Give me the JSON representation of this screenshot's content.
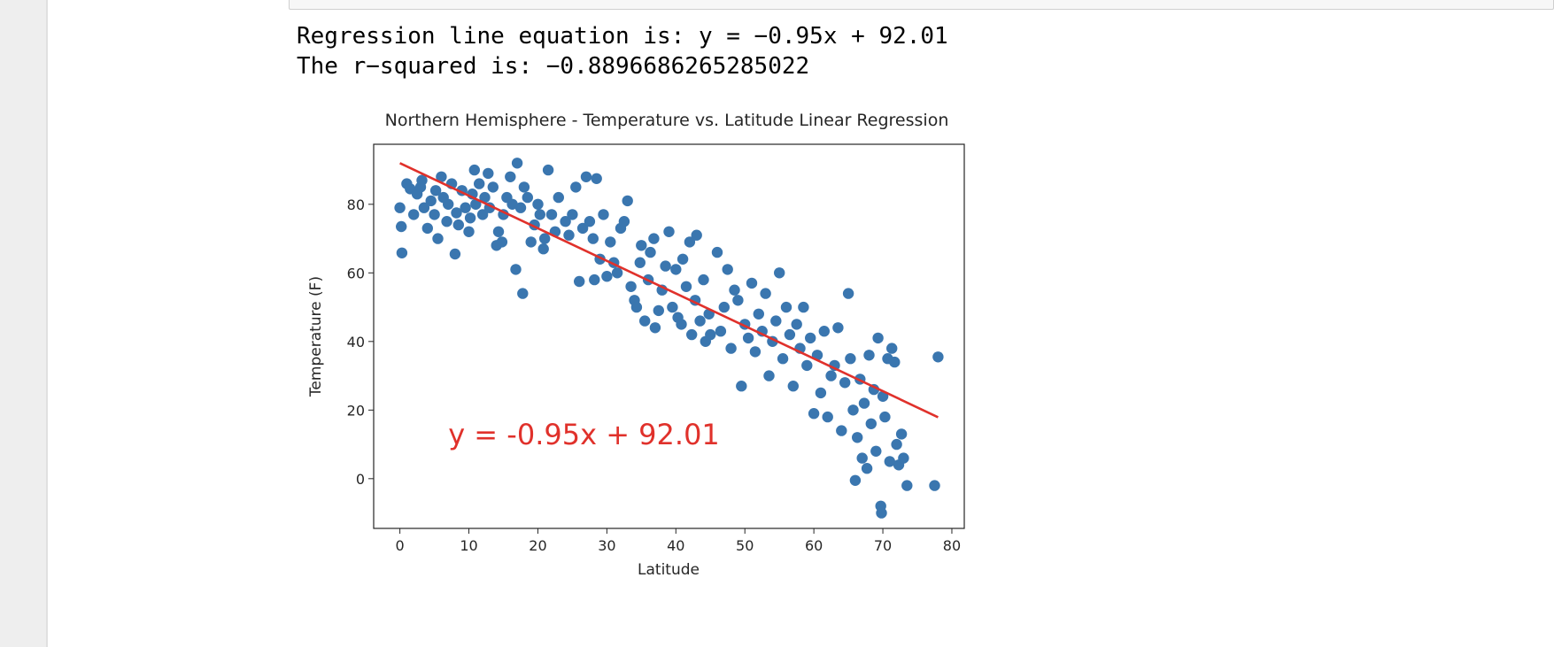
{
  "output": {
    "line1": "Regression line equation is: y = −0.95x + 92.01",
    "line2": "The r−squared is: −0.8896686265285022"
  },
  "colors": {
    "points": "#3a76af",
    "regression": "#e0312b",
    "text": "#262626"
  },
  "chart_data": {
    "type": "scatter",
    "title": "Northern Hemisphere - Temperature vs. Latitude Linear Regression",
    "xlabel": "Latitude",
    "ylabel": "Temperature (F)",
    "xlim": [
      -3.8,
      81.8
    ],
    "ylim": [
      -14.5,
      97.5
    ],
    "x_ticks": [
      0,
      10,
      20,
      30,
      40,
      50,
      60,
      70,
      80
    ],
    "y_ticks": [
      0,
      20,
      40,
      60,
      80
    ],
    "regression_line": {
      "slope": -0.95,
      "intercept": 92.01,
      "x_range": [
        0,
        78
      ]
    },
    "annotation": {
      "text": "y = -0.95x + 92.01",
      "x": 7,
      "y": 10
    },
    "grid": false,
    "points": [
      [
        0,
        79
      ],
      [
        0.2,
        73.5
      ],
      [
        0.3,
        65.8
      ],
      [
        1,
        86
      ],
      [
        1.5,
        84.5
      ],
      [
        2,
        77
      ],
      [
        2.5,
        83
      ],
      [
        3,
        85
      ],
      [
        3.2,
        87
      ],
      [
        3.5,
        79
      ],
      [
        4,
        73
      ],
      [
        4.5,
        81
      ],
      [
        5,
        77
      ],
      [
        5.2,
        84
      ],
      [
        5.5,
        70
      ],
      [
        6,
        88
      ],
      [
        6.3,
        82
      ],
      [
        6.8,
        75
      ],
      [
        7,
        80
      ],
      [
        7.5,
        86
      ],
      [
        8,
        65.5
      ],
      [
        8.2,
        77.5
      ],
      [
        8.5,
        74
      ],
      [
        9,
        84
      ],
      [
        9.5,
        79
      ],
      [
        10,
        72
      ],
      [
        10.2,
        76
      ],
      [
        10.5,
        83
      ],
      [
        10.8,
        90
      ],
      [
        11,
        80
      ],
      [
        11.5,
        86
      ],
      [
        12,
        77
      ],
      [
        12.3,
        82
      ],
      [
        12.8,
        89
      ],
      [
        13,
        79
      ],
      [
        13.5,
        85
      ],
      [
        14,
        68
      ],
      [
        14.3,
        72
      ],
      [
        14.8,
        69
      ],
      [
        15,
        77
      ],
      [
        15.5,
        82
      ],
      [
        16,
        88
      ],
      [
        16.3,
        80
      ],
      [
        16.8,
        61
      ],
      [
        17,
        92
      ],
      [
        17.5,
        79
      ],
      [
        17.8,
        54
      ],
      [
        18,
        85
      ],
      [
        18.5,
        82
      ],
      [
        19,
        69
      ],
      [
        19.5,
        74
      ],
      [
        20,
        80
      ],
      [
        20.3,
        77
      ],
      [
        20.8,
        67
      ],
      [
        21,
        70
      ],
      [
        21.5,
        90
      ],
      [
        22,
        77
      ],
      [
        22.5,
        72
      ],
      [
        23,
        82
      ],
      [
        24,
        75
      ],
      [
        24.5,
        71
      ],
      [
        25,
        77
      ],
      [
        25.5,
        85
      ],
      [
        26,
        57.5
      ],
      [
        26.5,
        73
      ],
      [
        27,
        88
      ],
      [
        27.5,
        75
      ],
      [
        28,
        70
      ],
      [
        28.2,
        58
      ],
      [
        28.5,
        87.5
      ],
      [
        29,
        64
      ],
      [
        29.5,
        77
      ],
      [
        30,
        59
      ],
      [
        30.5,
        69
      ],
      [
        31,
        63
      ],
      [
        31.5,
        60
      ],
      [
        32,
        73
      ],
      [
        32.5,
        75
      ],
      [
        33,
        81
      ],
      [
        33.5,
        56
      ],
      [
        34,
        52
      ],
      [
        34.3,
        50
      ],
      [
        34.8,
        63
      ],
      [
        35,
        68
      ],
      [
        35.5,
        46
      ],
      [
        36,
        58
      ],
      [
        36.3,
        66
      ],
      [
        36.8,
        70
      ],
      [
        37,
        44
      ],
      [
        37.5,
        49
      ],
      [
        38,
        55
      ],
      [
        38.5,
        62
      ],
      [
        39,
        72
      ],
      [
        39.5,
        50
      ],
      [
        40,
        61
      ],
      [
        40.3,
        47
      ],
      [
        40.8,
        45
      ],
      [
        41,
        64
      ],
      [
        41.5,
        56
      ],
      [
        42,
        69
      ],
      [
        42.3,
        42
      ],
      [
        42.8,
        52
      ],
      [
        43,
        71
      ],
      [
        43.5,
        46
      ],
      [
        44,
        58
      ],
      [
        44.3,
        40
      ],
      [
        44.8,
        48
      ],
      [
        45,
        42
      ],
      [
        46,
        66
      ],
      [
        46.5,
        43
      ],
      [
        47,
        50
      ],
      [
        47.5,
        61
      ],
      [
        48,
        38
      ],
      [
        48.5,
        55
      ],
      [
        49,
        52
      ],
      [
        49.5,
        27
      ],
      [
        50,
        45
      ],
      [
        50.5,
        41
      ],
      [
        51,
        57
      ],
      [
        51.5,
        37
      ],
      [
        52,
        48
      ],
      [
        52.5,
        43
      ],
      [
        53,
        54
      ],
      [
        53.5,
        30
      ],
      [
        54,
        40
      ],
      [
        54.5,
        46
      ],
      [
        55,
        60
      ],
      [
        55.5,
        35
      ],
      [
        56,
        50
      ],
      [
        56.5,
        42
      ],
      [
        57,
        27
      ],
      [
        57.5,
        45
      ],
      [
        58,
        38
      ],
      [
        58.5,
        50
      ],
      [
        59,
        33
      ],
      [
        59.5,
        41
      ],
      [
        60,
        19
      ],
      [
        60.5,
        36
      ],
      [
        61,
        25
      ],
      [
        61.5,
        43
      ],
      [
        62,
        18
      ],
      [
        62.5,
        30
      ],
      [
        63,
        33
      ],
      [
        63.5,
        44
      ],
      [
        64,
        14
      ],
      [
        64.5,
        28
      ],
      [
        65,
        54
      ],
      [
        65.3,
        35
      ],
      [
        65.7,
        20
      ],
      [
        66,
        -0.5
      ],
      [
        66.3,
        12
      ],
      [
        66.7,
        29
      ],
      [
        67,
        6
      ],
      [
        67.3,
        22
      ],
      [
        67.7,
        3
      ],
      [
        68,
        36
      ],
      [
        68.3,
        16
      ],
      [
        68.7,
        26
      ],
      [
        69,
        8
      ],
      [
        69.3,
        41
      ],
      [
        69.7,
        -8
      ],
      [
        69.8,
        -10
      ],
      [
        70,
        24
      ],
      [
        70.3,
        18
      ],
      [
        70.7,
        35
      ],
      [
        71,
        5
      ],
      [
        71.3,
        38
      ],
      [
        71.7,
        34
      ],
      [
        72,
        10
      ],
      [
        72.3,
        4
      ],
      [
        72.7,
        13
      ],
      [
        73,
        6
      ],
      [
        73.5,
        -2
      ],
      [
        77.5,
        -2
      ],
      [
        78,
        35.5
      ]
    ]
  }
}
